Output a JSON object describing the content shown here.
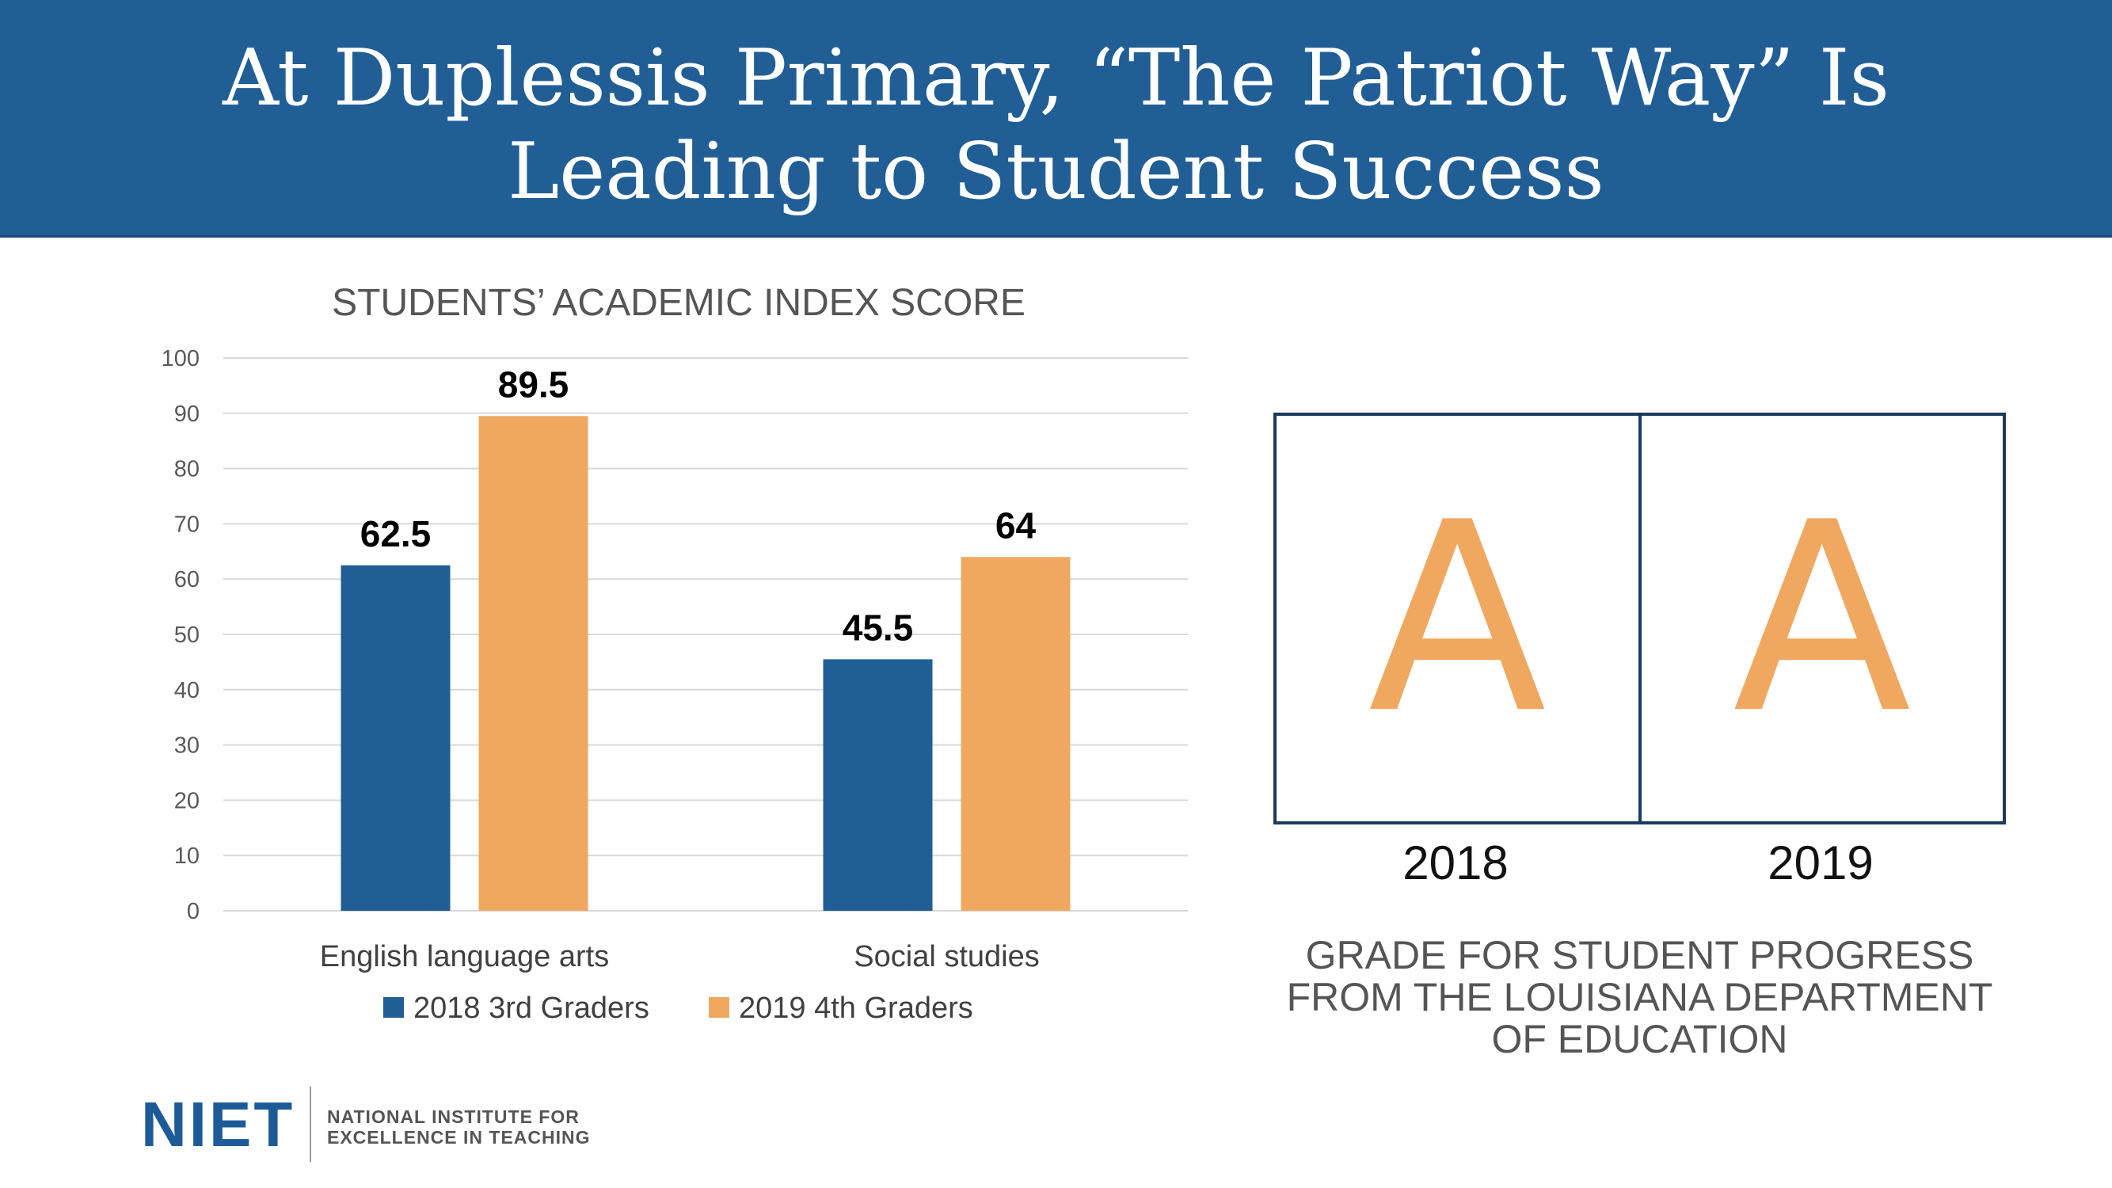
{
  "header": {
    "title_line1": "At Duplessis Primary, “The Patriot Way” Is",
    "title_line2": "Leading to Student Success"
  },
  "chart_data": {
    "type": "bar",
    "title": "STUDENTS’ ACADEMIC INDEX SCORE",
    "categories": [
      "English language arts",
      "Social studies"
    ],
    "series": [
      {
        "name": "2018 3rd Graders",
        "values": [
          62.5,
          45.5
        ],
        "color": "#215e95"
      },
      {
        "name": "2019 4th Graders",
        "values": [
          89.5,
          64
        ],
        "color": "#f0a860"
      }
    ],
    "data_labels": [
      [
        "62.5",
        "45.5"
      ],
      [
        "89.5",
        "64"
      ]
    ],
    "ylim": [
      0,
      100
    ],
    "yticks": [
      0,
      10,
      20,
      30,
      40,
      50,
      60,
      70,
      80,
      90,
      100
    ],
    "grid": true,
    "legend_position": "bottom"
  },
  "grades": {
    "cells": [
      {
        "year": "2018",
        "grade": "A"
      },
      {
        "year": "2019",
        "grade": "A"
      }
    ],
    "caption": [
      "GRADE FOR STUDENT PROGRESS",
      "FROM THE LOUISIANA DEPARTMENT",
      "OF EDUCATION"
    ],
    "grade_color": "#f0a860",
    "border_color": "#1c3a5e"
  },
  "logo": {
    "mark": "NIET",
    "tagline_line1": "NATIONAL INSTITUTE FOR",
    "tagline_line2": "EXCELLENCE IN TEACHING"
  }
}
